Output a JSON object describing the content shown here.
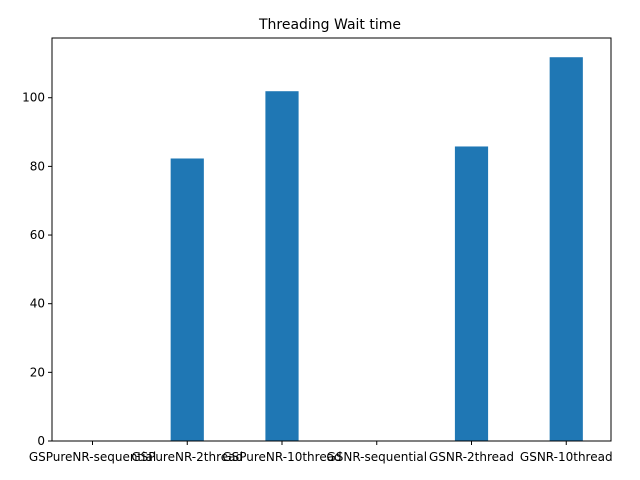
{
  "chart_data": {
    "type": "bar",
    "title": "Threading Wait time",
    "xlabel": "",
    "ylabel": "",
    "categories": [
      "GSPureNR-sequential",
      "GSPureNR-2thread",
      "GSPureNR-10thread",
      "GSNR-sequential",
      "GSNR-2thread",
      "GSNR-10thread"
    ],
    "values": [
      0,
      82.3,
      101.9,
      0,
      85.8,
      111.8
    ],
    "ylim": [
      0,
      117.4
    ],
    "yticks": [
      0,
      20,
      40,
      60,
      80,
      100
    ],
    "grid": false,
    "legend": "none",
    "bar_color": "#1f77b4"
  }
}
